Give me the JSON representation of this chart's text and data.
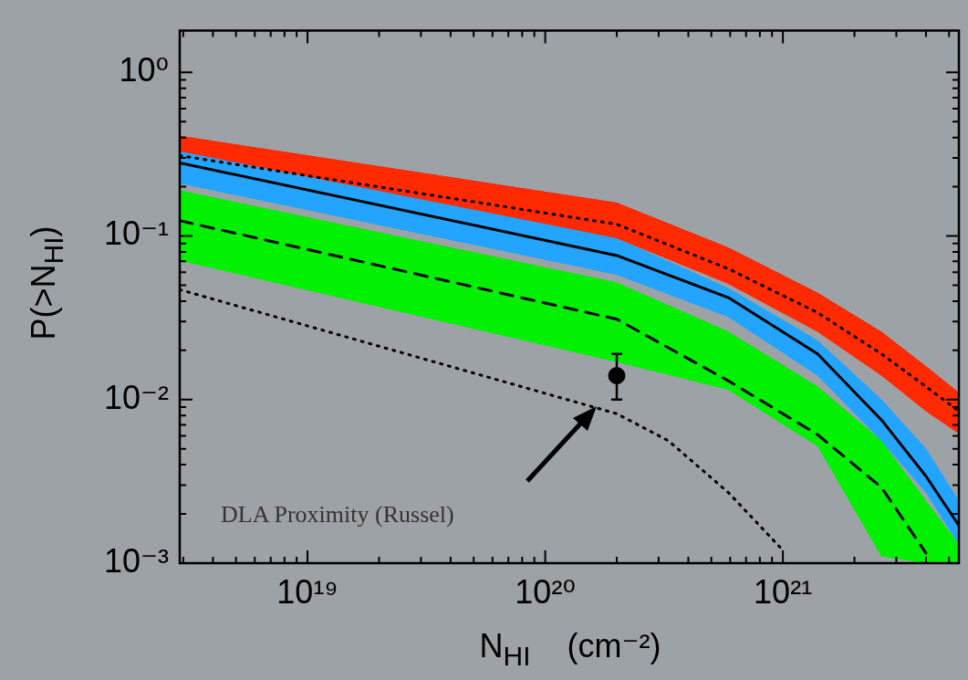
{
  "chart_data": {
    "type": "line",
    "xlabel": "N$_{HI}$    (cm⁻²)",
    "ylabel": "P(>N$_{HI}$)",
    "log": "xy",
    "grid": false,
    "legend": false,
    "x": [
      2.9e+18,
      2e+20,
      5.9e+20,
      1.4e+21,
      2.6e+21,
      4e+21,
      5.5e+21
    ],
    "xlim": [
      2.9e+18,
      5.5e+21
    ],
    "ylim": [
      0.001,
      1.8
    ],
    "xticks": [
      {
        "value": 3e+18,
        "label": null
      },
      {
        "value": 4e+18,
        "label": null
      },
      {
        "value": 5e+18,
        "label": null
      },
      {
        "value": 6e+18,
        "label": null
      },
      {
        "value": 7e+18,
        "label": null
      },
      {
        "value": 8e+18,
        "label": null
      },
      {
        "value": 9e+18,
        "label": null
      },
      {
        "value": 1e+19,
        "label": "10¹⁹"
      },
      {
        "value": 2e+19,
        "label": null
      },
      {
        "value": 3e+19,
        "label": null
      },
      {
        "value": 4e+19,
        "label": null
      },
      {
        "value": 5e+19,
        "label": null
      },
      {
        "value": 6e+19,
        "label": null
      },
      {
        "value": 7e+19,
        "label": null
      },
      {
        "value": 8e+19,
        "label": null
      },
      {
        "value": 9e+19,
        "label": null
      },
      {
        "value": 1e+20,
        "label": "10²⁰"
      },
      {
        "value": 2e+20,
        "label": null
      },
      {
        "value": 3e+20,
        "label": null
      },
      {
        "value": 4e+20,
        "label": null
      },
      {
        "value": 5e+20,
        "label": null
      },
      {
        "value": 6e+20,
        "label": null
      },
      {
        "value": 7e+20,
        "label": null
      },
      {
        "value": 8e+20,
        "label": null
      },
      {
        "value": 9e+20,
        "label": null
      },
      {
        "value": 1e+21,
        "label": "10²¹"
      },
      {
        "value": 2e+21,
        "label": null
      },
      {
        "value": 3e+21,
        "label": null
      },
      {
        "value": 4e+21,
        "label": null
      },
      {
        "value": 5e+21,
        "label": null
      }
    ],
    "yticks": [
      {
        "value": 0.001,
        "label": "10⁻³"
      },
      {
        "value": 0.002,
        "label": null
      },
      {
        "value": 0.003,
        "label": null
      },
      {
        "value": 0.004,
        "label": null
      },
      {
        "value": 0.005,
        "label": null
      },
      {
        "value": 0.006,
        "label": null
      },
      {
        "value": 0.007,
        "label": null
      },
      {
        "value": 0.008,
        "label": null
      },
      {
        "value": 0.009,
        "label": null
      },
      {
        "value": 0.01,
        "label": "10⁻²"
      },
      {
        "value": 0.02,
        "label": null
      },
      {
        "value": 0.03,
        "label": null
      },
      {
        "value": 0.04,
        "label": null
      },
      {
        "value": 0.05,
        "label": null
      },
      {
        "value": 0.06,
        "label": null
      },
      {
        "value": 0.07,
        "label": null
      },
      {
        "value": 0.08,
        "label": null
      },
      {
        "value": 0.09,
        "label": null
      },
      {
        "value": 0.1,
        "label": "10⁻¹"
      },
      {
        "value": 0.2,
        "label": null
      },
      {
        "value": 0.3,
        "label": null
      },
      {
        "value": 0.4,
        "label": null
      },
      {
        "value": 0.5,
        "label": null
      },
      {
        "value": 0.6,
        "label": null
      },
      {
        "value": 0.7,
        "label": null
      },
      {
        "value": 0.8,
        "label": null
      },
      {
        "value": 0.9,
        "label": null
      },
      {
        "value": 1,
        "label": "10⁰"
      }
    ],
    "series": [
      {
        "type": "line",
        "color": "#000000",
        "line_style": "dotted",
        "values": [
          0.31,
          0.118,
          0.063,
          0.034,
          0.019,
          0.012,
          0.0085
        ],
        "colors": [
          "#ff2a00",
          "#ff2a00",
          "#ff2a00",
          "#ff2a00",
          "#ff2a00",
          "#ff2a00",
          "#ff2a00"
        ],
        "upper": [
          0.41,
          0.16,
          0.085,
          0.045,
          0.026,
          0.016,
          0.011
        ],
        "lower": [
          0.33,
          0.097,
          0.051,
          0.026,
          0.014,
          0.0085,
          0.0062
        ]
      },
      {
        "type": "line",
        "color": "#000000",
        "line_style": "solid",
        "values": [
          0.28,
          0.076,
          0.042,
          0.019,
          0.0075,
          0.0034,
          0.0017
        ],
        "colors": [
          "#22a4ff",
          "#22a4ff",
          "#22a4ff",
          "#22a4ff",
          "#22a4ff",
          "#22a4ff",
          "#22a4ff"
        ],
        "upper": [
          0.34,
          0.097,
          0.048,
          0.023,
          0.01,
          0.005,
          0.0024
        ],
        "lower": [
          0.21,
          0.058,
          0.032,
          0.014,
          0.0056,
          0.0027,
          0.0013
        ]
      },
      {
        "type": "line",
        "color": "#000000",
        "line_style": "dashed",
        "values": [
          0.124,
          0.031,
          0.013,
          0.0061,
          0.0029,
          0.00115,
          null
        ],
        "colors": [
          "#00f000",
          "#00f000",
          "#00f000",
          "#00f000",
          "#00f000",
          "#00f000",
          "#00f000"
        ],
        "upper": [
          0.19,
          0.052,
          0.026,
          0.012,
          0.0056,
          0.0024,
          0.0013
        ],
        "lower": [
          0.071,
          0.017,
          0.0115,
          0.0052,
          0.0011,
          0.001,
          0.001
        ]
      },
      {
        "type": "line",
        "color": "#000000",
        "line_style": "dotted",
        "x": [
          2.9e+18,
          2e+20,
          3.3e+20,
          5.9e+20,
          1e+21
        ],
        "values": [
          0.047,
          0.0082,
          0.0056,
          0.0027,
          0.0012
        ]
      },
      {
        "type": "scatter",
        "color": "#000000",
        "marker": "circle",
        "x": [
          2e+20
        ],
        "values": [
          0.014
        ],
        "errors": [
          [
            0.01,
            0.019
          ]
        ]
      }
    ],
    "annotations": [
      "DLA Proximity (Russel)"
    ]
  }
}
